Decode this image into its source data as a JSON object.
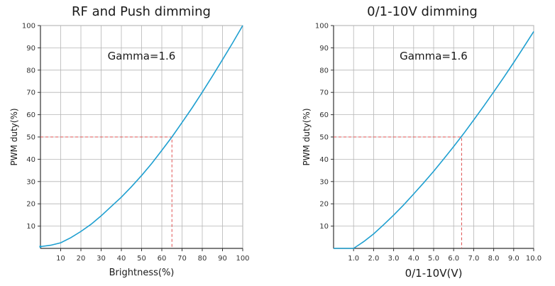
{
  "chart_data": [
    {
      "type": "line",
      "title": "RF and Push dimming",
      "annotation": "Gamma=1.6",
      "xlabel": "Brightness(%)",
      "ylabel": "PWM duty(%)",
      "xlim": [
        0,
        100
      ],
      "ylim": [
        0,
        100
      ],
      "x_ticks": [
        10,
        20,
        30,
        40,
        50,
        60,
        70,
        80,
        90,
        100
      ],
      "x_tick_labels": [
        "10",
        "20",
        "30",
        "40",
        "50",
        "60",
        "70",
        "80",
        "90",
        "100"
      ],
      "y_ticks": [
        10,
        20,
        30,
        40,
        50,
        60,
        70,
        80,
        90,
        100
      ],
      "y_tick_labels": [
        "10",
        "20",
        "30",
        "40",
        "50",
        "60",
        "70",
        "80",
        "90",
        "100"
      ],
      "grid": true,
      "series": [
        {
          "name": "PWM duty",
          "color": "#1e9fd0",
          "x": [
            0,
            5,
            10,
            15,
            20,
            25,
            30,
            35,
            40,
            45,
            50,
            55,
            60,
            65,
            70,
            75,
            80,
            85,
            90,
            95,
            100
          ],
          "y": [
            0.8,
            1.4,
            2.5,
            4.8,
            7.6,
            10.8,
            14.6,
            18.8,
            23.0,
            27.7,
            32.7,
            38.1,
            44.0,
            50.0,
            56.5,
            63.1,
            70.1,
            77.3,
            84.7,
            92.2,
            100.0
          ]
        }
      ],
      "guide": {
        "color": "#e05050",
        "x": 65,
        "y": 50
      }
    },
    {
      "type": "line",
      "title": "0/1-10V dimming",
      "annotation": "Gamma=1.6",
      "xlabel": "0/1-10V(V)",
      "ylabel": "PWM duty(%)",
      "xlim": [
        0,
        10
      ],
      "ylim": [
        0,
        100
      ],
      "x_ticks": [
        1,
        2,
        3,
        4,
        5,
        6,
        7,
        8,
        9,
        10
      ],
      "x_tick_labels": [
        "1.0",
        "2.0",
        "3.0",
        "4.0",
        "5.0",
        "6.0",
        "7.0",
        "8.0",
        "9.0",
        "10.0"
      ],
      "y_ticks": [
        10,
        20,
        30,
        40,
        50,
        60,
        70,
        80,
        90,
        100
      ],
      "y_tick_labels": [
        "10",
        "20",
        "30",
        "40",
        "50",
        "60",
        "70",
        "80",
        "90",
        "100"
      ],
      "grid": true,
      "series": [
        {
          "name": "PWM duty",
          "color": "#1e9fd0",
          "x": [
            0,
            0.5,
            1.0,
            1.5,
            2.0,
            2.5,
            3.0,
            3.5,
            4.0,
            4.5,
            5.0,
            5.5,
            6.0,
            6.5,
            7.0,
            7.5,
            8.0,
            8.5,
            9.0,
            9.5,
            10.0
          ],
          "y": [
            0,
            0,
            0,
            3.0,
            6.5,
            10.6,
            14.9,
            19.5,
            24.4,
            29.4,
            34.6,
            40.1,
            45.7,
            51.5,
            57.6,
            63.8,
            70.2,
            76.7,
            83.4,
            90.3,
            97.3
          ]
        }
      ],
      "guide": {
        "color": "#e05050",
        "x": 6.4,
        "y": 50
      }
    }
  ]
}
